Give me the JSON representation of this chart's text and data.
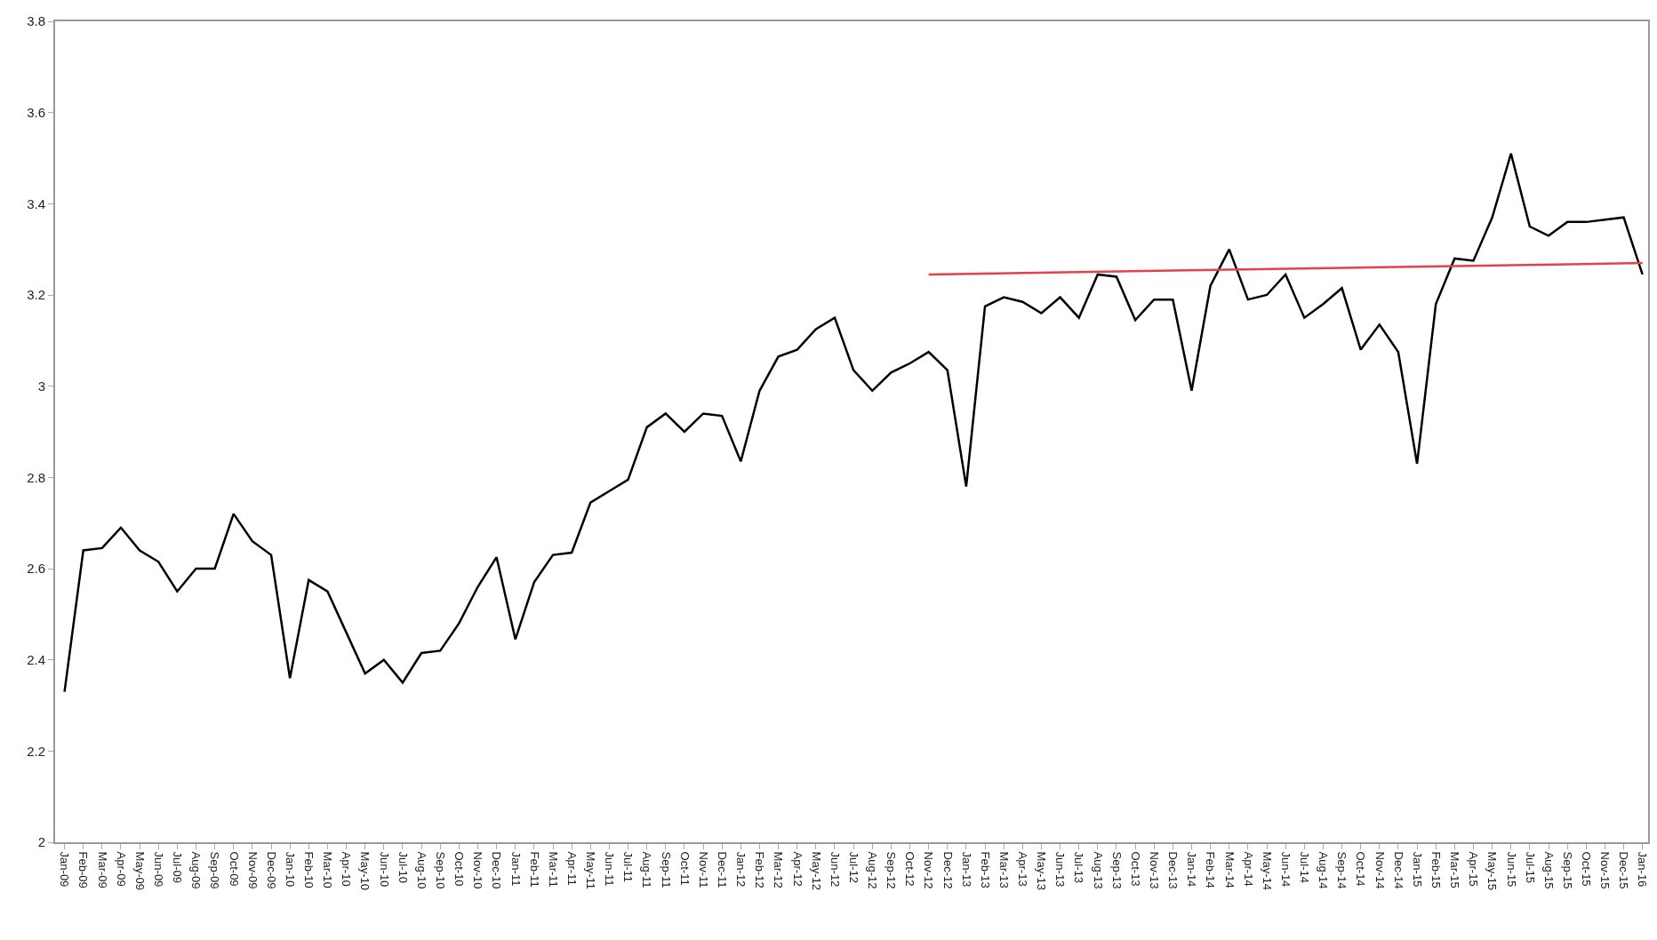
{
  "chart_data": {
    "type": "line",
    "categories": [
      "Jan-09",
      "Feb-09",
      "Mar-09",
      "Apr-09",
      "May-09",
      "Jun-09",
      "Jul-09",
      "Aug-09",
      "Sep-09",
      "Oct-09",
      "Nov-09",
      "Dec-09",
      "Jan-10",
      "Feb-10",
      "Mar-10",
      "Apr-10",
      "May-10",
      "Jun-10",
      "Jul-10",
      "Aug-10",
      "Sep-10",
      "Oct-10",
      "Nov-10",
      "Dec-10",
      "Jan-11",
      "Feb-11",
      "Mar-11",
      "Apr-11",
      "May-11",
      "Jun-11",
      "Jul-11",
      "Aug-11",
      "Sep-11",
      "Oct-11",
      "Nov-11",
      "Dec-11",
      "Jan-12",
      "Feb-12",
      "Mar-12",
      "Apr-12",
      "May-12",
      "Jun-12",
      "Jul-12",
      "Aug-12",
      "Sep-12",
      "Oct-12",
      "Nov-12",
      "Dec-12",
      "Jan-13",
      "Feb-13",
      "Mar-13",
      "Apr-13",
      "May-13",
      "Jun-13",
      "Jul-13",
      "Aug-13",
      "Sep-13",
      "Oct-13",
      "Nov-13",
      "Dec-13",
      "Jan-14",
      "Feb-14",
      "Mar-14",
      "Apr-14",
      "May-14",
      "Jun-14",
      "Jul-14",
      "Aug-14",
      "Sep-14",
      "Oct-14",
      "Nov-14",
      "Dec-14",
      "Jan-15",
      "Feb-15",
      "Mar-15",
      "Apr-15",
      "May-15",
      "Jun-15",
      "Jul-15",
      "Aug-15",
      "Sep-15",
      "Oct-15",
      "Nov-15",
      "Dec-15",
      "Jan-16"
    ],
    "series": [
      {
        "color": "#000000",
        "values": [
          2.33,
          2.64,
          2.645,
          2.69,
          2.64,
          2.615,
          2.55,
          2.6,
          2.6,
          2.72,
          2.66,
          2.63,
          2.36,
          2.575,
          2.55,
          2.46,
          2.37,
          2.4,
          2.35,
          2.415,
          2.42,
          2.48,
          2.56,
          2.625,
          2.445,
          2.57,
          2.63,
          2.635,
          2.745,
          2.77,
          2.795,
          2.91,
          2.94,
          2.9,
          2.94,
          2.935,
          2.835,
          2.99,
          3.065,
          3.08,
          3.125,
          3.15,
          3.035,
          2.99,
          3.03,
          3.05,
          3.075,
          3.035,
          2.78,
          3.175,
          3.195,
          3.185,
          3.16,
          3.195,
          3.15,
          3.245,
          3.24,
          3.145,
          3.19,
          3.19,
          2.99,
          3.22,
          3.3,
          3.19,
          3.2,
          3.245,
          3.15,
          3.18,
          3.215,
          3.08,
          3.135,
          3.075,
          2.83,
          3.18,
          3.28,
          3.275,
          3.37,
          3.51,
          3.35,
          3.33,
          3.36,
          3.36,
          3.365,
          3.37,
          3.245
        ]
      },
      {
        "type": "line",
        "color": "#e8404a",
        "x": [
          "Nov-12",
          "Jan-16"
        ],
        "values": [
          3.245,
          3.27
        ]
      }
    ],
    "ylim": [
      2,
      3.8
    ],
    "yticks": [
      2,
      2.2,
      2.4,
      2.6,
      2.8,
      3,
      3.2,
      3.4,
      3.6,
      3.8
    ],
    "grid": false,
    "marker": "none",
    "line_style": "solid"
  }
}
